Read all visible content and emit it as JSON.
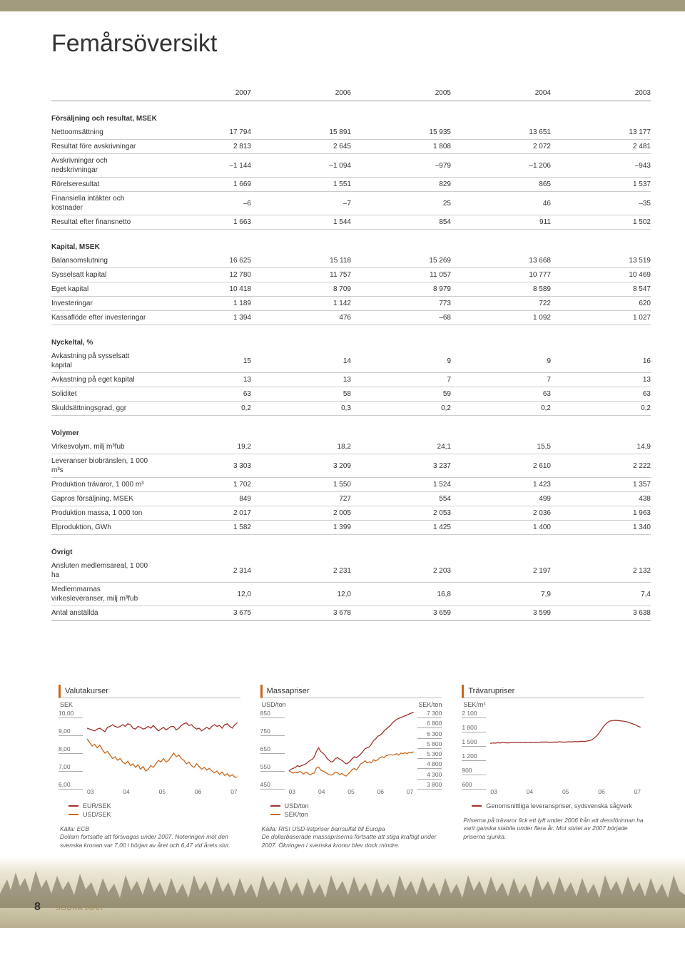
{
  "title": "Femårsöversikt",
  "years": [
    "2007",
    "2006",
    "2005",
    "2004",
    "2003"
  ],
  "sections": [
    {
      "title": "Försäljning och resultat, MSEK",
      "rows": [
        {
          "label": "Nettoomsättning",
          "v": [
            "17 794",
            "15 891",
            "15 935",
            "13 651",
            "13 177"
          ]
        },
        {
          "label": "Resultat före avskrivningar",
          "v": [
            "2 813",
            "2 645",
            "1 808",
            "2 072",
            "2 481"
          ]
        },
        {
          "label": "Avskrivningar och nedskrivningar",
          "v": [
            "–1 144",
            "–1 094",
            "–979",
            "–1 206",
            "–943"
          ]
        },
        {
          "label": "Rörelseresultat",
          "v": [
            "1 669",
            "1 551",
            "829",
            "865",
            "1 537"
          ]
        },
        {
          "label": "Finansiella intäkter och kostnader",
          "v": [
            "–6",
            "–7",
            "25",
            "46",
            "–35"
          ]
        },
        {
          "label": "Resultat efter finansnetto",
          "v": [
            "1 663",
            "1 544",
            "854",
            "911",
            "1 502"
          ]
        }
      ]
    },
    {
      "title": "Kapital, MSEK",
      "rows": [
        {
          "label": "Balansomslutning",
          "v": [
            "16 625",
            "15 118",
            "15 269",
            "13 668",
            "13 519"
          ]
        },
        {
          "label": "Sysselsatt kapital",
          "v": [
            "12 780",
            "11 757",
            "11 057",
            "10 777",
            "10 469"
          ]
        },
        {
          "label": "Eget kapital",
          "v": [
            "10 418",
            "8 709",
            "8 979",
            "8 589",
            "8 547"
          ]
        },
        {
          "label": "Investeringar",
          "v": [
            "1 189",
            "1 142",
            "773",
            "722",
            "620"
          ]
        },
        {
          "label": "Kassaflöde efter investeringar",
          "v": [
            "1 394",
            "476",
            "–68",
            "1 092",
            "1 027"
          ]
        }
      ]
    },
    {
      "title": "Nyckeltal, %",
      "rows": [
        {
          "label": "Avkastning på sysselsatt kapital",
          "v": [
            "15",
            "14",
            "9",
            "9",
            "16"
          ]
        },
        {
          "label": "Avkastning på eget kapital",
          "v": [
            "13",
            "13",
            "7",
            "7",
            "13"
          ]
        },
        {
          "label": "Soliditet",
          "v": [
            "63",
            "58",
            "59",
            "63",
            "63"
          ]
        },
        {
          "label": "Skuldsättningsgrad, ggr",
          "v": [
            "0,2",
            "0,3",
            "0,2",
            "0,2",
            "0,2"
          ]
        }
      ]
    },
    {
      "title": "Volymer",
      "rows": [
        {
          "label": "Virkesvolym, milj m³fub",
          "v": [
            "19,2",
            "18,2",
            "24,1",
            "15,5",
            "14,9"
          ]
        },
        {
          "label": "Leveranser biobränslen, 1 000 m³s",
          "v": [
            "3 303",
            "3 209",
            "3 237",
            "2 610",
            "2 222"
          ]
        },
        {
          "label": "Produktion trävaror, 1 000 m³",
          "v": [
            "1 702",
            "1 550",
            "1 524",
            "1 423",
            "1 357"
          ]
        },
        {
          "label": "Gapros försäljning, MSEK",
          "v": [
            "849",
            "727",
            "554",
            "499",
            "438"
          ]
        },
        {
          "label": "Produktion massa, 1 000 ton",
          "v": [
            "2 017",
            "2 005",
            "2 053",
            "2 036",
            "1 963"
          ]
        },
        {
          "label": "Elproduktion, GWh",
          "v": [
            "1 582",
            "1 399",
            "1 425",
            "1 400",
            "1 340"
          ]
        }
      ]
    },
    {
      "title": "Övrigt",
      "rows": [
        {
          "label": "Ansluten medlemsareal, 1 000 ha",
          "v": [
            "2 314",
            "2 231",
            "2 203",
            "2 197",
            "2 132"
          ]
        },
        {
          "label": "Medlemmarnas virkesleveranser, milj m³fub",
          "v": [
            "12,0",
            "12,0",
            "16,8",
            "7,9",
            "7,4"
          ]
        },
        {
          "label": "Antal anställda",
          "v": [
            "3 675",
            "3 678",
            "3 659",
            "3 599",
            "3 638"
          ]
        }
      ]
    }
  ],
  "charts": {
    "valutakurser": {
      "title": "Valutakurser",
      "ylabel": "SEK",
      "yticks": [
        "10,00",
        "9,00",
        "8,00",
        "7,00",
        "6,00"
      ],
      "ylim": [
        6,
        10
      ],
      "xticks": [
        "03",
        "04",
        "05",
        "06",
        "07"
      ],
      "series": [
        {
          "name": "EUR/SEK",
          "color": "#a2312a",
          "vals": [
            9.2,
            9.15,
            9.1,
            9.05,
            9.15,
            9.2,
            9.1,
            9.0,
            9.25,
            9.3,
            9.4,
            9.3,
            9.25,
            9.3,
            9.4,
            9.3,
            9.45,
            9.4,
            9.2,
            9.15,
            9.3,
            9.25,
            9.15,
            9.2,
            9.3,
            9.2,
            9.35,
            9.2,
            9.05,
            9.15,
            9.25,
            9.1,
            9.2,
            9.3,
            9.3,
            9.1,
            9.2,
            9.35,
            9.45,
            9.5,
            9.35,
            9.4,
            9.25,
            9.15,
            9.2,
            9.05,
            9.15,
            9.25,
            9.15,
            9.3,
            9.4,
            9.3,
            9.35,
            9.2,
            9.4,
            9.45,
            9.3,
            9.2,
            9.4,
            9.5
          ]
        },
        {
          "name": "USD/SEK",
          "color": "#c8671c",
          "vals": [
            8.6,
            8.4,
            8.2,
            8.3,
            8.1,
            8.25,
            8.0,
            7.8,
            7.9,
            7.7,
            7.5,
            7.6,
            7.4,
            7.5,
            7.3,
            7.2,
            7.35,
            7.1,
            7.2,
            7.0,
            7.15,
            6.9,
            7.05,
            6.8,
            6.9,
            7.1,
            7.0,
            7.2,
            7.4,
            7.3,
            7.5,
            7.3,
            7.4,
            7.6,
            7.8,
            7.6,
            7.7,
            7.5,
            7.4,
            7.2,
            7.3,
            7.1,
            7.0,
            7.2,
            7.05,
            6.9,
            7.0,
            6.85,
            6.95,
            6.8,
            6.7,
            6.8,
            6.6,
            6.75,
            6.55,
            6.65,
            6.5,
            6.6,
            6.45,
            6.47
          ]
        }
      ],
      "source": "Källa: ECB",
      "caption": "Dollarn fortsatte att försvagas under 2007. Noteringen mot den svenska kronan var 7,00 i början av året och 6,47 vid årets slut."
    },
    "massapriser": {
      "title": "Massapriser",
      "ylabel_l": "USD/ton",
      "ylabel_r": "SEK/ton",
      "yticks_l": [
        "850",
        "750",
        "650",
        "550",
        "450"
      ],
      "ylim_l": [
        450,
        850
      ],
      "yticks_r": [
        "7 300",
        "6 800",
        "6 300",
        "5 800",
        "5 300",
        "4 800",
        "4 300",
        "3 800"
      ],
      "ylim_r": [
        3800,
        7300
      ],
      "xticks": [
        "03",
        "04",
        "05",
        "06",
        "07"
      ],
      "series": [
        {
          "name": "USD/ton",
          "color": "#a2312a",
          "axis": "l",
          "vals": [
            530,
            540,
            545,
            550,
            560,
            555,
            560,
            565,
            570,
            580,
            590,
            595,
            610,
            640,
            660,
            640,
            630,
            620,
            600,
            590,
            580,
            585,
            600,
            605,
            595,
            590,
            580,
            570,
            575,
            585,
            600,
            610,
            605,
            615,
            625,
            640,
            655,
            660,
            665,
            680,
            700,
            710,
            725,
            730,
            740,
            755,
            765,
            775,
            785,
            800,
            810,
            820,
            825,
            830,
            835,
            840,
            845,
            850,
            855,
            860
          ]
        },
        {
          "name": "SEK/ton",
          "color": "#c8671c",
          "axis": "r",
          "vals": [
            4500,
            4450,
            4400,
            4450,
            4400,
            4480,
            4420,
            4350,
            4450,
            4380,
            4300,
            4380,
            4400,
            4650,
            4700,
            4550,
            4500,
            4450,
            4380,
            4320,
            4300,
            4350,
            4450,
            4420,
            4320,
            4380,
            4300,
            4250,
            4350,
            4450,
            4580,
            4620,
            4550,
            4700,
            4850,
            4900,
            5000,
            4900,
            4950,
            4900,
            5050,
            5000,
            5050,
            5150,
            5200,
            5150,
            5250,
            5280,
            5300,
            5280,
            5300,
            5350,
            5280,
            5380,
            5350,
            5400,
            5350,
            5420,
            5380,
            5450
          ]
        }
      ],
      "source": "Källa: RISI USD-listpriser barrsulfat till Europa",
      "caption": "De dollarbaserade massapriserna fortsatte att stiga kraftigt under 2007. Ökningen i svenska kronor blev dock mindre."
    },
    "travarupriser": {
      "title": "Trävarupriser",
      "ylabel": "SEK/m³",
      "yticks": [
        "2 100",
        "1 800",
        "1 500",
        "1 200",
        "900",
        "600"
      ],
      "ylim": [
        600,
        2100
      ],
      "xticks": [
        "03",
        "04",
        "05",
        "06",
        "07"
      ],
      "series": [
        {
          "name": "Genomsnittliga leveranspriser, sydsvenska sågverk",
          "color": "#a2312a",
          "vals": [
            1480,
            1490,
            1485,
            1495,
            1490,
            1500,
            1495,
            1490,
            1500,
            1495,
            1505,
            1500,
            1495,
            1500,
            1505,
            1500,
            1505,
            1500,
            1495,
            1500,
            1510,
            1505,
            1510,
            1505,
            1500,
            1510,
            1505,
            1515,
            1510,
            1505,
            1510,
            1515,
            1510,
            1520,
            1515,
            1520,
            1525,
            1520,
            1530,
            1540,
            1560,
            1600,
            1650,
            1720,
            1800,
            1870,
            1920,
            1950,
            1960,
            1965,
            1960,
            1955,
            1950,
            1940,
            1930,
            1910,
            1890,
            1870,
            1840,
            1820
          ]
        }
      ],
      "caption": "Priserna på trävaror fick ett lyft under 2006 från att dessförinnan ha varit ganska stabila under flera år. Mot slutet av 2007 började priserna sjunka."
    }
  },
  "footer": {
    "page": "8",
    "brand": "SÖDRA 06/07"
  }
}
